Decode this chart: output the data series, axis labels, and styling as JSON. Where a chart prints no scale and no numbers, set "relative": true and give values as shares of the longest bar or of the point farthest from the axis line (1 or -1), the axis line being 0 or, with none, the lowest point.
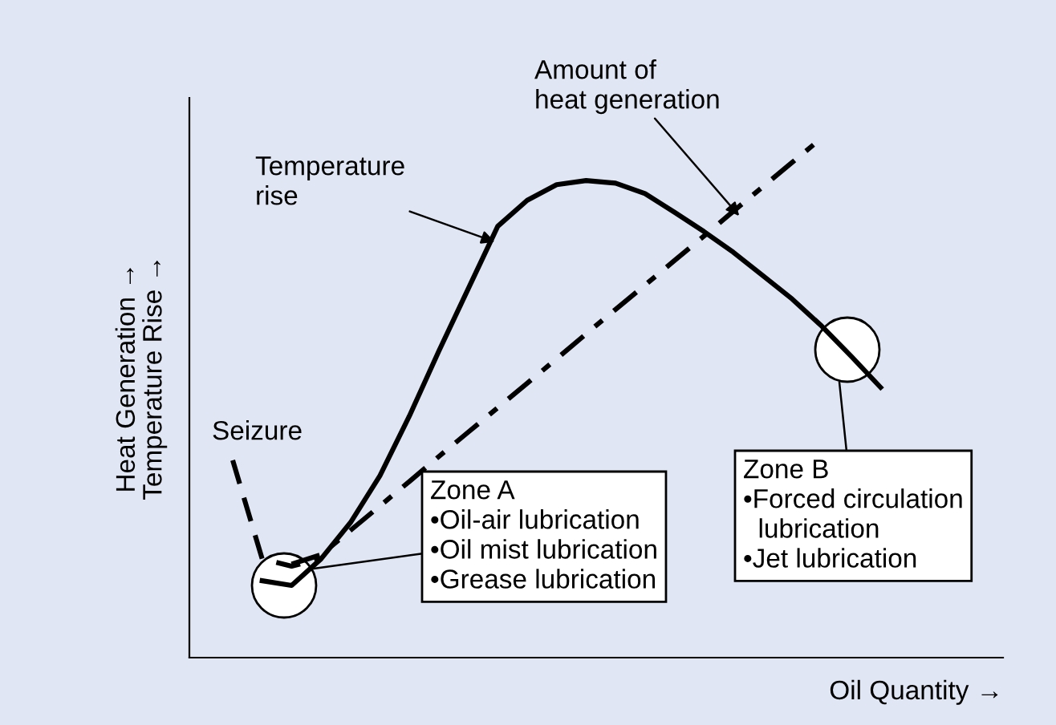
{
  "chart_data": {
    "type": "line",
    "relative": true,
    "xlabel": "Oil Quantity →",
    "ylabel": "Heat Generation →\nTemperature Rise →",
    "categories": [
      null,
      null,
      null,
      null,
      null,
      null,
      null,
      null,
      null,
      null,
      null,
      null,
      null,
      null,
      null,
      null,
      null,
      null,
      null,
      null,
      null,
      null,
      null
    ],
    "series": [
      {
        "color": "#000000",
        "line_style": "solid",
        "values": [
          null,
          0.148,
          0.139,
          0.19,
          0.26,
          0.35,
          0.465,
          0.59,
          0.71,
          0.83,
          0.88,
          0.91,
          0.918,
          0.913,
          0.893,
          0.857,
          0.82,
          0.78,
          0.735,
          0.69,
          0.638,
          0.58,
          0.52
        ]
      },
      {
        "color": "#000000",
        "line_style": "dashdot",
        "values": [
          null,
          null,
          0.18,
          0.198,
          0.245,
          0.292,
          0.339,
          0.387,
          0.434,
          0.481,
          0.528,
          0.575,
          0.623,
          0.67,
          0.717,
          0.764,
          0.811,
          0.859,
          0.906,
          0.953,
          1.0,
          null,
          null
        ]
      },
      {
        "color": "#000000",
        "line_style": "dashed",
        "values": [
          0.38,
          0.19,
          0.176,
          0.19,
          null,
          null,
          null,
          null,
          null,
          null,
          null,
          null,
          null,
          null,
          null,
          null,
          null,
          null,
          null,
          null,
          null,
          null,
          null
        ]
      }
    ],
    "annotations": [
      "Temperature\nrise",
      "Amount of\nheat generation",
      "Seizure",
      "Zone A\n•Oil-air lubrication\n•Oil mist lubrication\n•Grease lubrication",
      "Zone B\n•Forced circulation\n  lubrication\n•Jet lubrication"
    ],
    "legend": false
  }
}
